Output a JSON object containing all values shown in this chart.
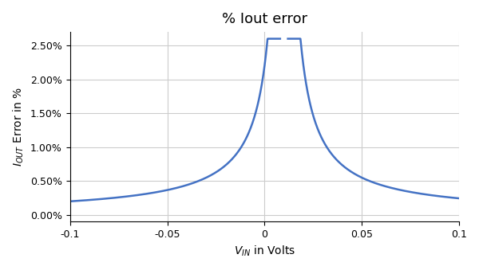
{
  "title": "% Iout error",
  "xlabel": "V_{IN} in Volts",
  "ylabel": "I_{OUT} Error in %",
  "xlim": [
    -0.1,
    0.1
  ],
  "ylim": [
    -0.001,
    0.027
  ],
  "yticks": [
    0.0,
    0.005,
    0.01,
    0.015,
    0.02,
    0.025
  ],
  "ytick_labels": [
    "0.00%",
    "0.50%",
    "1.00%",
    "1.50%",
    "2.00%",
    "2.50%"
  ],
  "xticks": [
    -0.1,
    -0.05,
    0.0,
    0.05,
    0.1
  ],
  "xtick_labels": [
    "-0.1",
    "-0.05",
    "0",
    "0.05",
    "0.1"
  ],
  "line_color": "#4472C4",
  "line_width": 1.8,
  "bg_color": "#ffffff",
  "grid_color": "#cccccc",
  "title_fontsize": 13,
  "label_fontsize": 10,
  "tick_fontsize": 9,
  "curve_peak_x": 0.01,
  "curve_A": 0.00022,
  "curve_clip_ymax": 0.026
}
